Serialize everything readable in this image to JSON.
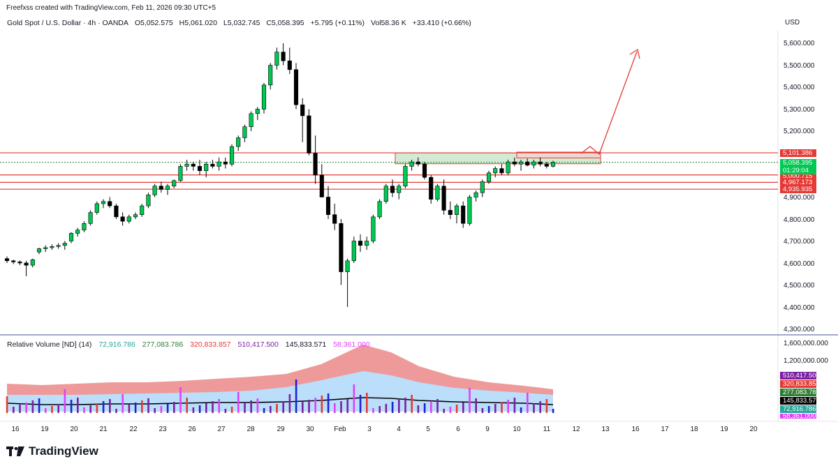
{
  "header": {
    "attribution": "Freefxss created with TradingView.com, Feb 11, 2026 09:30 UTC+5",
    "currency": "USD"
  },
  "legend": {
    "symbol": "Gold Spot / U.S. Dollar · 4h · OANDA",
    "open": "O5,052.575",
    "high": "H5,061.020",
    "low": "L5,032.745",
    "close": "C5,058.395",
    "change": "+5.795 (+0.11%)",
    "volume": "Vol58.36 K",
    "vol_change": "+33.410 (+0.66%)"
  },
  "volume_legend": {
    "title": "Relative Volume [ND] (14)",
    "values": [
      {
        "text": "72,916.786",
        "color": "#26a69a"
      },
      {
        "text": "277,083.786",
        "color": "#2e7d32"
      },
      {
        "text": "320,833.857",
        "color": "#e53935"
      },
      {
        "text": "510,417.500",
        "color": "#7b1fa2"
      },
      {
        "text": "145,833.571",
        "color": "#131722"
      },
      {
        "text": "58,361.000",
        "color": "#e040fb"
      }
    ]
  },
  "price_axis": [
    "5,600.000",
    "5,500.000",
    "5,400.000",
    "5,300.000",
    "5,200.000",
    "4,900.000",
    "4,800.000",
    "4,700.000",
    "4,600.000",
    "4,500.000",
    "4,400.000",
    "4,300.000"
  ],
  "price_tags": [
    {
      "text": "5,101.386",
      "color": "#e53935"
    },
    {
      "text": "5,058.395",
      "color": "#00c853"
    },
    {
      "text": "01:29:04",
      "color": "#00c853"
    },
    {
      "text": "5,000.715",
      "color": "#e53935"
    },
    {
      "text": "4,967.173",
      "color": "#e53935"
    },
    {
      "text": "4,935.935",
      "color": "#e53935"
    }
  ],
  "volume_axis": [
    "1,600,000.000",
    "1,200,000.000"
  ],
  "volume_tags": [
    {
      "text": "510,417.500",
      "color": "#7b1fa2"
    },
    {
      "text": "320,833.857",
      "color": "#e53935"
    },
    {
      "text": "277,083.786",
      "color": "#2e7d32"
    },
    {
      "text": "145,833.571",
      "color": "#000000"
    },
    {
      "text": "72,916.786",
      "color": "#26a69a"
    },
    {
      "text": "58,361.000",
      "color": "#e040fb"
    }
  ],
  "time_axis": [
    "16",
    "19",
    "20",
    "21",
    "22",
    "23",
    "26",
    "27",
    "28",
    "29",
    "30",
    "Feb",
    "3",
    "4",
    "5",
    "6",
    "9",
    "10",
    "11",
    "12",
    "13",
    "16",
    "17",
    "18",
    "19",
    "20"
  ],
  "brand": "TradingView",
  "colors": {
    "up": "#00c853",
    "down": "#000000",
    "level": "#e53935",
    "zone": "#c8e6c9"
  },
  "chart_data": {
    "type": "candlestick",
    "symbol": "XAUUSD",
    "timeframe": "4h",
    "ylim": [
      4300,
      5650
    ],
    "resistance_levels": [
      5101.386,
      5000.715,
      4967.173,
      4935.935
    ],
    "current_price": 5058.395,
    "candles": [
      [
        4620,
        4630,
        4600,
        4610
      ],
      [
        4610,
        4615,
        4595,
        4605
      ],
      [
        4605,
        4612,
        4590,
        4600
      ],
      [
        4600,
        4610,
        4540,
        4590
      ],
      [
        4590,
        4620,
        4580,
        4615
      ],
      [
        4650,
        4670,
        4640,
        4665
      ],
      [
        4665,
        4680,
        4650,
        4670
      ],
      [
        4670,
        4685,
        4660,
        4675
      ],
      [
        4675,
        4690,
        4665,
        4680
      ],
      [
        4680,
        4700,
        4660,
        4690
      ],
      [
        4700,
        4740,
        4690,
        4735
      ],
      [
        4735,
        4760,
        4720,
        4750
      ],
      [
        4750,
        4790,
        4740,
        4780
      ],
      [
        4780,
        4840,
        4770,
        4830
      ],
      [
        4830,
        4880,
        4820,
        4870
      ],
      [
        4870,
        4890,
        4850,
        4880
      ],
      [
        4880,
        4900,
        4850,
        4860
      ],
      [
        4860,
        4870,
        4800,
        4810
      ],
      [
        4810,
        4830,
        4770,
        4790
      ],
      [
        4790,
        4820,
        4780,
        4810
      ],
      [
        4810,
        4830,
        4800,
        4820
      ],
      [
        4820,
        4870,
        4810,
        4860
      ],
      [
        4860,
        4920,
        4850,
        4910
      ],
      [
        4910,
        4960,
        4900,
        4950
      ],
      [
        4950,
        4970,
        4920,
        4935
      ],
      [
        4935,
        4960,
        4910,
        4950
      ],
      [
        4950,
        4980,
        4940,
        4975
      ],
      [
        4975,
        5050,
        4970,
        5040
      ],
      [
        5040,
        5070,
        5020,
        5050
      ],
      [
        5050,
        5060,
        5020,
        5040
      ],
      [
        5040,
        5070,
        5000,
        5020
      ],
      [
        5020,
        5060,
        4990,
        5050
      ],
      [
        5050,
        5070,
        5030,
        5040
      ],
      [
        5040,
        5080,
        5020,
        5060
      ],
      [
        5060,
        5080,
        5030,
        5050
      ],
      [
        5050,
        5140,
        5040,
        5130
      ],
      [
        5130,
        5180,
        5110,
        5170
      ],
      [
        5170,
        5230,
        5150,
        5220
      ],
      [
        5220,
        5290,
        5200,
        5280
      ],
      [
        5280,
        5310,
        5250,
        5300
      ],
      [
        5300,
        5420,
        5280,
        5410
      ],
      [
        5410,
        5510,
        5390,
        5500
      ],
      [
        5500,
        5580,
        5480,
        5560
      ],
      [
        5560,
        5600,
        5500,
        5520
      ],
      [
        5520,
        5580,
        5460,
        5480
      ],
      [
        5480,
        5510,
        5300,
        5320
      ],
      [
        5320,
        5350,
        5150,
        5270
      ],
      [
        5270,
        5300,
        5090,
        5100
      ],
      [
        5100,
        5180,
        4960,
        5000
      ],
      [
        5000,
        5050,
        4900,
        4900
      ],
      [
        4900,
        4950,
        4800,
        4820
      ],
      [
        4820,
        4870,
        4750,
        4780
      ],
      [
        4780,
        4800,
        4500,
        4560
      ],
      [
        4560,
        4620,
        4400,
        4610
      ],
      [
        4610,
        4720,
        4600,
        4700
      ],
      [
        4700,
        4730,
        4650,
        4680
      ],
      [
        4680,
        4720,
        4660,
        4700
      ],
      [
        4700,
        4820,
        4690,
        4810
      ],
      [
        4810,
        4890,
        4800,
        4880
      ],
      [
        4880,
        4960,
        4870,
        4950
      ],
      [
        4950,
        4980,
        4900,
        4920
      ],
      [
        4920,
        4960,
        4890,
        4950
      ],
      [
        4950,
        5050,
        4940,
        5040
      ],
      [
        5040,
        5070,
        5020,
        5060
      ],
      [
        5060,
        5080,
        5040,
        5050
      ],
      [
        5050,
        5060,
        4980,
        4990
      ],
      [
        4990,
        5000,
        4870,
        4890
      ],
      [
        4890,
        4960,
        4880,
        4950
      ],
      [
        4950,
        4980,
        4820,
        4840
      ],
      [
        4840,
        4880,
        4800,
        4820
      ],
      [
        4820,
        4870,
        4780,
        4860
      ],
      [
        4860,
        4880,
        4760,
        4780
      ],
      [
        4780,
        4910,
        4770,
        4900
      ],
      [
        4900,
        4930,
        4880,
        4920
      ],
      [
        4920,
        4980,
        4900,
        4970
      ],
      [
        4970,
        5020,
        4960,
        5010
      ],
      [
        5010,
        5040,
        4990,
        5030
      ],
      [
        5030,
        5050,
        5000,
        5010
      ],
      [
        5010,
        5070,
        5000,
        5060
      ],
      [
        5060,
        5080,
        5040,
        5050
      ],
      [
        5050,
        5070,
        5020,
        5060
      ],
      [
        5060,
        5075,
        5040,
        5045
      ],
      [
        5045,
        5070,
        5030,
        5060
      ],
      [
        5060,
        5080,
        5040,
        5050
      ],
      [
        5050,
        5060,
        5030,
        5040
      ],
      [
        5040,
        5065,
        5035,
        5058
      ]
    ]
  }
}
